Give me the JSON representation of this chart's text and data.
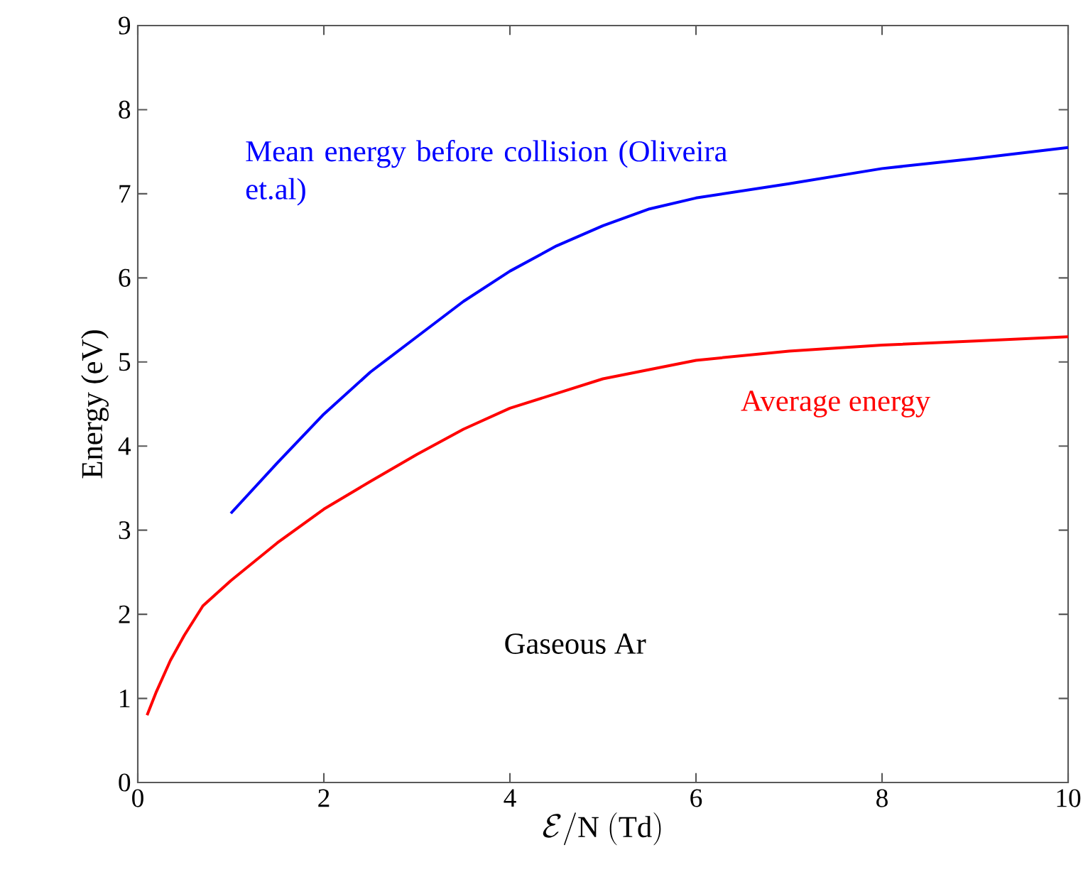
{
  "chart_data": {
    "type": "line",
    "xlabel": "\\mathcal{E}/\\mathrm{N}\\ (\\mathrm{Td})",
    "ylabel": "Energy (eV)",
    "xlim": [
      0,
      10
    ],
    "ylim": [
      0,
      9
    ],
    "xticks": [
      0,
      2,
      4,
      6,
      8,
      10
    ],
    "yticks": [
      0,
      1,
      2,
      3,
      4,
      5,
      6,
      7,
      8,
      9
    ],
    "grid": false,
    "legend": false,
    "annotations": [
      "Gaseous Ar"
    ],
    "series": [
      {
        "name": "Mean energy before collision (Oliveira et.al)",
        "color": "#0000ff",
        "x": [
          1,
          1.5,
          2,
          2.5,
          3,
          3.5,
          4,
          4.5,
          5,
          5.5,
          6,
          7,
          8,
          9,
          10
        ],
        "values": [
          3.2,
          3.8,
          4.38,
          4.88,
          5.3,
          5.72,
          6.08,
          6.38,
          6.62,
          6.82,
          6.95,
          7.12,
          7.3,
          7.42,
          7.55
        ]
      },
      {
        "name": "Average energy",
        "color": "#ff0000",
        "x": [
          0.1,
          0.2,
          0.35,
          0.5,
          0.7,
          1,
          1.5,
          2,
          2.5,
          3,
          3.5,
          4,
          5,
          6,
          7,
          8,
          9,
          10
        ],
        "values": [
          0.8,
          1.08,
          1.45,
          1.75,
          2.1,
          2.4,
          2.85,
          3.25,
          3.58,
          3.9,
          4.2,
          4.45,
          4.8,
          5.02,
          5.13,
          5.2,
          5.25,
          5.3
        ]
      }
    ]
  }
}
